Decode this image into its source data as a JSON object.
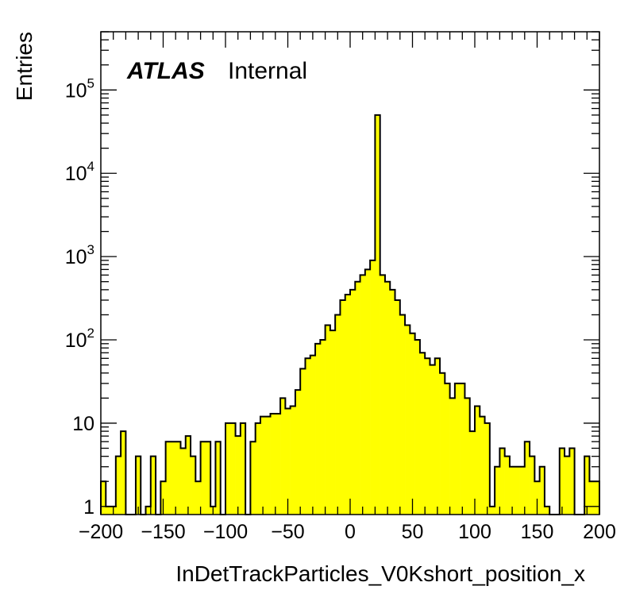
{
  "chart_data": {
    "type": "histogram",
    "xlabel": "InDetTrackParticles_V0Kshort_position_x",
    "ylabel": "Entries",
    "xlim": [
      -200,
      200
    ],
    "ylim": [
      0.8,
      500000
    ],
    "yscale": "log",
    "bin_width": 4,
    "fill_color": "#ffff00",
    "line_color": "#000000",
    "grid": false,
    "legend": "none",
    "xticks": [
      "−200",
      "−150",
      "−100",
      "−50",
      "0",
      "50",
      "100",
      "150",
      "200"
    ],
    "xtick_values": [
      -200,
      -150,
      -100,
      -50,
      0,
      50,
      100,
      150,
      200
    ],
    "yticks": [
      {
        "value": 1,
        "base": "1",
        "exp": ""
      },
      {
        "value": 10,
        "base": "10",
        "exp": ""
      },
      {
        "value": 100,
        "base": "10",
        "exp": "2"
      },
      {
        "value": 1000,
        "base": "10",
        "exp": "3"
      },
      {
        "value": 10000,
        "base": "10",
        "exp": "4"
      },
      {
        "value": 100000,
        "base": "10",
        "exp": "5"
      }
    ],
    "annotation": {
      "bold": "ATLAS",
      "normal": "Internal"
    },
    "x": [
      -198,
      -194,
      -190,
      -186,
      -182,
      -178,
      -174,
      -170,
      -166,
      -162,
      -158,
      -154,
      -150,
      -146,
      -142,
      -138,
      -134,
      -130,
      -126,
      -122,
      -118,
      -114,
      -110,
      -106,
      -102,
      -98,
      -94,
      -90,
      -86,
      -82,
      -78,
      -74,
      -70,
      -66,
      -62,
      -58,
      -54,
      -50,
      -46,
      -42,
      -38,
      -34,
      -30,
      -26,
      -22,
      -18,
      -14,
      -10,
      -6,
      -2,
      2,
      6,
      10,
      14,
      18,
      22,
      26,
      30,
      34,
      38,
      42,
      46,
      50,
      54,
      58,
      62,
      66,
      70,
      74,
      78,
      82,
      86,
      90,
      94,
      98,
      102,
      106,
      110,
      114,
      118,
      122,
      126,
      130,
      134,
      138,
      142,
      146,
      150,
      154,
      158,
      162,
      166,
      170,
      174,
      178,
      182,
      186,
      190,
      194,
      198
    ],
    "values": [
      2,
      1,
      1,
      4,
      8,
      0,
      0,
      4,
      0,
      1,
      4,
      0,
      2,
      6,
      6,
      6,
      5,
      7,
      4,
      2,
      6,
      6,
      1,
      6,
      0,
      10,
      10,
      7,
      10,
      0,
      6,
      10,
      12,
      12,
      13,
      13,
      20,
      15,
      16,
      25,
      45,
      60,
      65,
      90,
      100,
      150,
      130,
      200,
      300,
      350,
      400,
      500,
      600,
      700,
      900,
      50000,
      600,
      500,
      400,
      300,
      200,
      150,
      120,
      100,
      70,
      60,
      50,
      60,
      40,
      30,
      20,
      30,
      30,
      20,
      8,
      16,
      12,
      10,
      1,
      3,
      5,
      4,
      3,
      3,
      3,
      6,
      4,
      2,
      3,
      1,
      0,
      0,
      5,
      4,
      5,
      0,
      0,
      4,
      2,
      2
    ]
  }
}
